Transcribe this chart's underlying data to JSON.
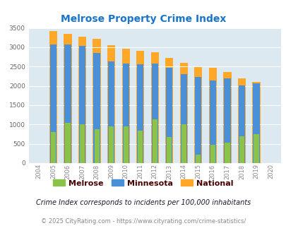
{
  "title": "Melrose Property Crime Index",
  "title_color": "#1874CD",
  "years": [
    2004,
    2005,
    2006,
    2007,
    2008,
    2009,
    2010,
    2011,
    2012,
    2013,
    2014,
    2015,
    2016,
    2017,
    2018,
    2019,
    2020
  ],
  "melrose": [
    0,
    800,
    1050,
    1000,
    870,
    950,
    950,
    850,
    1130,
    670,
    1000,
    220,
    470,
    530,
    700,
    750,
    0
  ],
  "minnesota": [
    0,
    3080,
    3080,
    3040,
    2860,
    2630,
    2580,
    2560,
    2580,
    2460,
    2310,
    2230,
    2140,
    2190,
    2010,
    2060,
    0
  ],
  "national": [
    0,
    3420,
    3340,
    3270,
    3210,
    3050,
    2960,
    2910,
    2870,
    2730,
    2600,
    2490,
    2470,
    2360,
    2200,
    2100,
    0
  ],
  "melrose_color": "#8BC34A",
  "minnesota_color": "#4A90D9",
  "national_color": "#FFA726",
  "bg_color": "#dce9f0",
  "ylim": [
    0,
    3500
  ],
  "yticks": [
    0,
    500,
    1000,
    1500,
    2000,
    2500,
    3000,
    3500
  ],
  "footnote1": "Crime Index corresponds to incidents per 100,000 inhabitants",
  "footnote2": "© 2025 CityRating.com - https://www.cityrating.com/crime-statistics/",
  "footnote1_color": "#1a1a2e",
  "footnote2_color": "#888888",
  "legend_text_color": "#4a0000",
  "bar_width": 0.25,
  "figwidth": 4.06,
  "figheight": 3.3
}
